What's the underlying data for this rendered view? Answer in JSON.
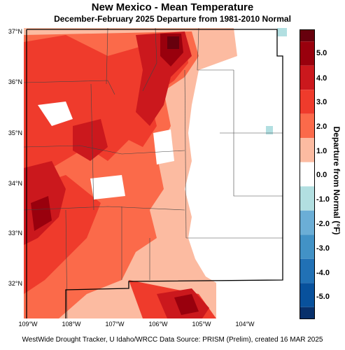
{
  "header": {
    "title": "New Mexico - Mean Temperature",
    "subtitle": "December-February 2025  Departure from 1981-2010 Normal"
  },
  "axes": {
    "lat_labels": [
      "37°N",
      "36°N",
      "35°N",
      "34°N",
      "33°N",
      "32°N"
    ],
    "lat_values": [
      37,
      36,
      35,
      34,
      33,
      32
    ],
    "lon_labels": [
      "109°W",
      "108°W",
      "107°W",
      "106°W",
      "105°W",
      "104°W"
    ],
    "lon_values": [
      -109,
      -108,
      -107,
      -106,
      -105,
      -104
    ],
    "lat_range": [
      31.3,
      37.05
    ],
    "lon_range": [
      -109.05,
      -103.0
    ]
  },
  "legend": {
    "title": "Departure from Normal (°F)",
    "labels": [
      "5.0",
      "4.0",
      "3.0",
      "2.0",
      "1.0",
      "0.0",
      "-1.0",
      "-2.0",
      "-3.0",
      "-4.0",
      "-5.0"
    ],
    "bins": [
      {
        "min": 5.5,
        "max": 6.0,
        "color": "#67000d"
      },
      {
        "min": 4.5,
        "max": 5.5,
        "color": "#99000d"
      },
      {
        "min": 3.5,
        "max": 4.5,
        "color": "#cb181d"
      },
      {
        "min": 2.5,
        "max": 3.5,
        "color": "#ef3b2c"
      },
      {
        "min": 1.5,
        "max": 2.5,
        "color": "#fb6a4a"
      },
      {
        "min": 0.5,
        "max": 1.5,
        "color": "#fcbba1"
      },
      {
        "min": -0.5,
        "max": 0.5,
        "color": "#ffffff"
      },
      {
        "min": -1.5,
        "max": -0.5,
        "color": "#b2dfe1"
      },
      {
        "min": -2.5,
        "max": -1.5,
        "color": "#6baed6"
      },
      {
        "min": -3.5,
        "max": -2.5,
        "color": "#4292c6"
      },
      {
        "min": -4.5,
        "max": -3.5,
        "color": "#2171b5"
      },
      {
        "min": -5.5,
        "max": -4.5,
        "color": "#08519c"
      },
      {
        "min": -6.0,
        "max": -5.5,
        "color": "#08306b"
      }
    ]
  },
  "footer": {
    "credit": "WestWide Drought Tracker, U Idaho/WRCC Data Source: PRISM (Prelim), created 16 MAR 2025"
  }
}
